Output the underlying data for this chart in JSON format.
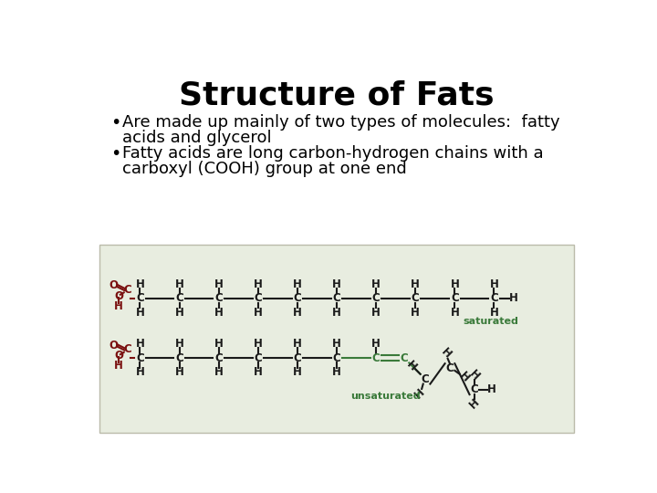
{
  "title": "Structure of Fats",
  "title_fontsize": 26,
  "bullet1_line1": "Are made up mainly of two types of molecules:  fatty",
  "bullet1_line2": "acids and glycerol",
  "bullet2_line1": "Fatty acids are long carbon-hydrogen chains with a",
  "bullet2_line2": "carboxyl (COOH) group at one end",
  "bullet_fontsize": 13,
  "background_color": "#ffffff",
  "text_color": "#000000",
  "box_background": "#e8ede0",
  "dark_red": "#7a1010",
  "dark_green": "#3a7a3a",
  "chain_black": "#1a1a1a"
}
